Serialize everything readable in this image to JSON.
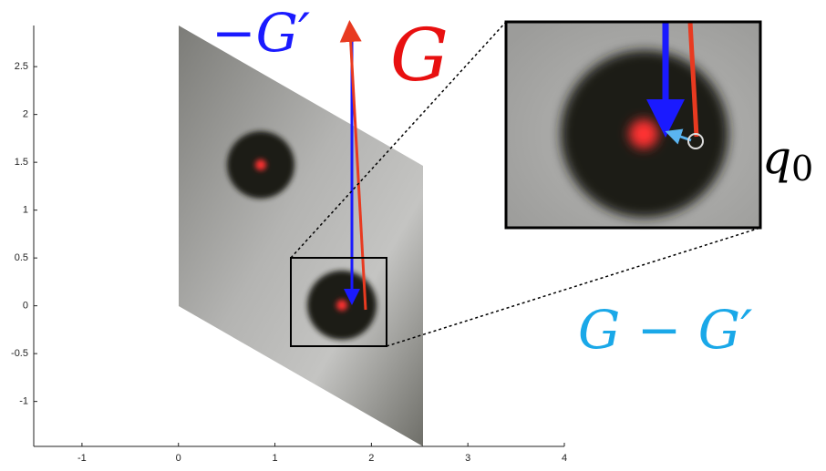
{
  "chart_data": {
    "type": "illustration",
    "xlim": [
      -1.5,
      4
    ],
    "ylim": [
      -1.47,
      2.93
    ],
    "xticks": [
      -1,
      0,
      1,
      2,
      3,
      4
    ],
    "yticks": [
      -1,
      -0.5,
      0,
      0.5,
      1,
      1.5,
      2,
      2.5
    ],
    "annotations": {
      "neg_g_prime": "−G′",
      "g": "G",
      "q0": {
        "base": "q",
        "sub": "0"
      },
      "diff": "G − G′"
    }
  }
}
